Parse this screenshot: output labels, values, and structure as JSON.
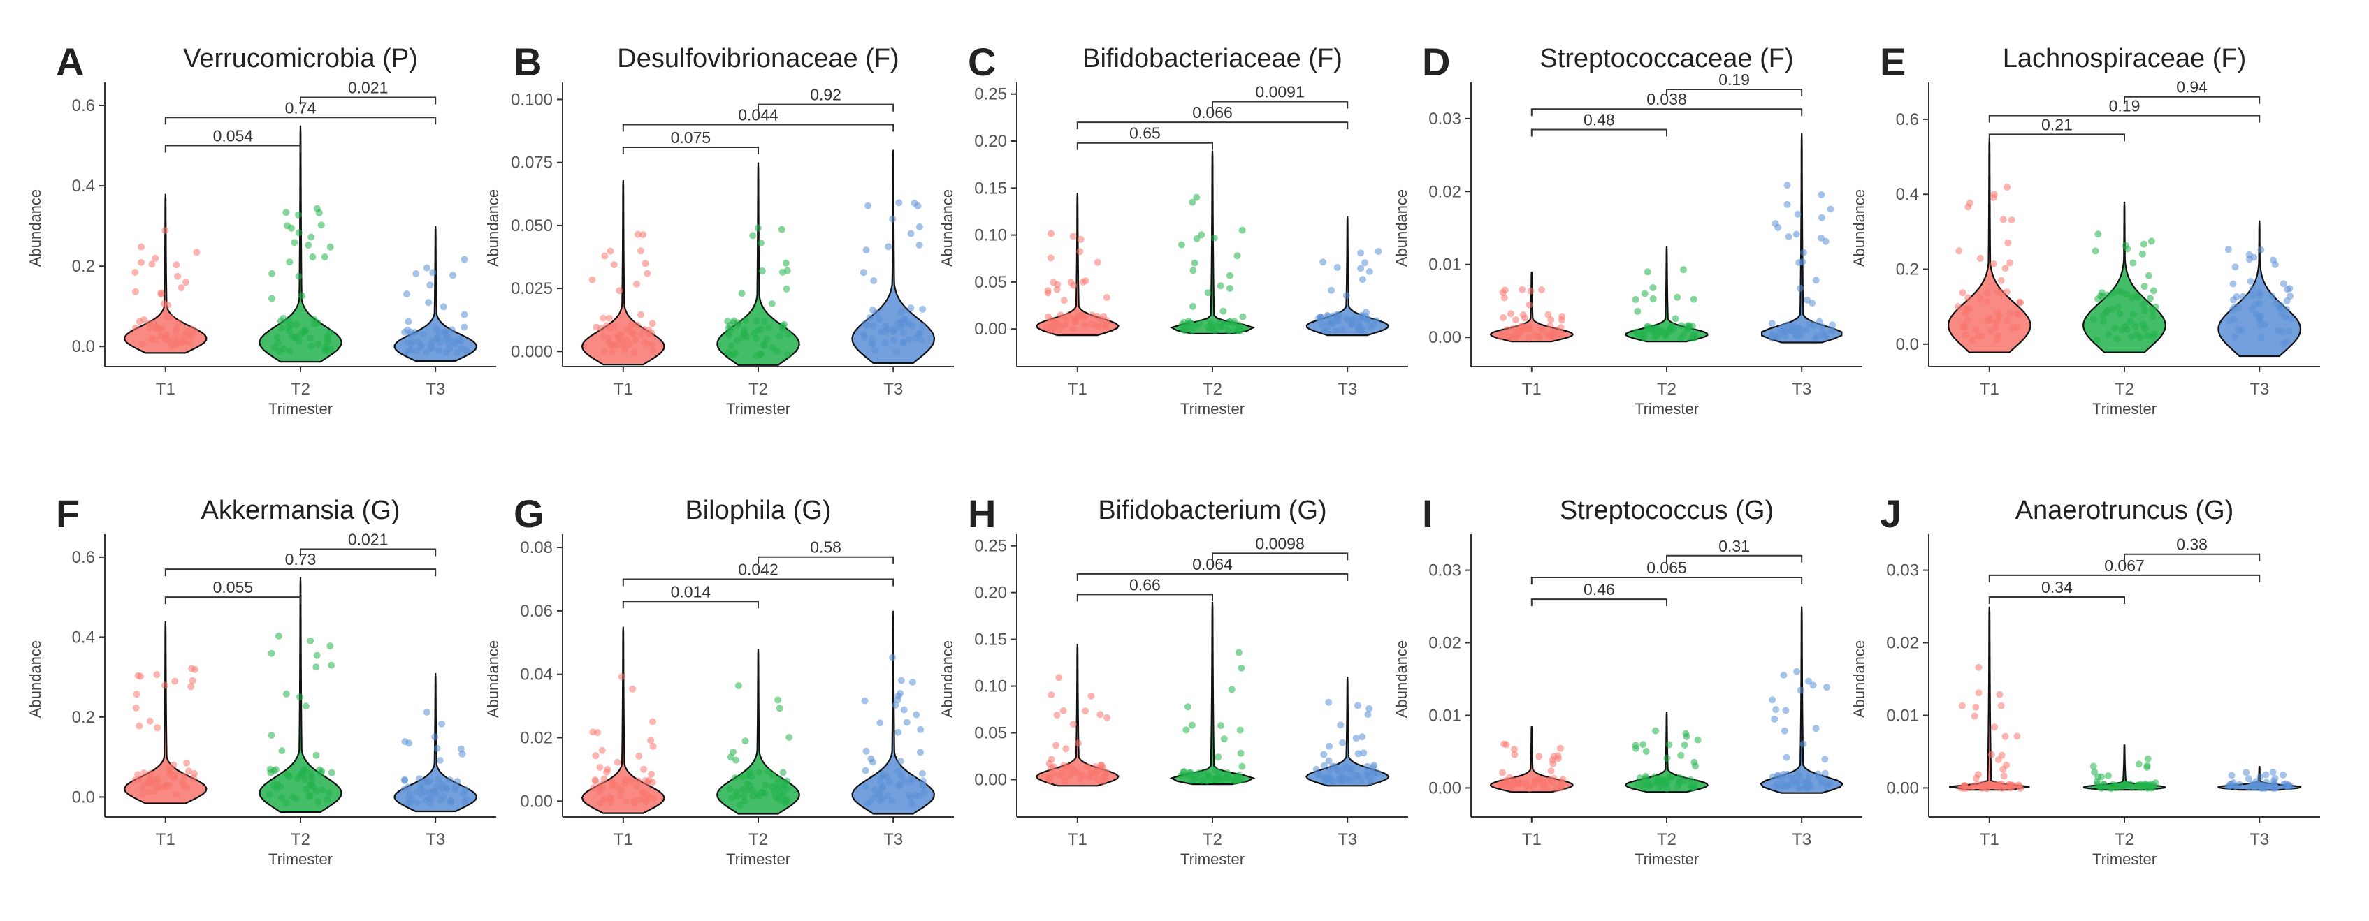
{
  "colors": {
    "T1": "#f8766d",
    "T2": "#22b24c",
    "T3": "#5b8fd6",
    "outline": "#111111"
  },
  "chart_data": [
    {
      "type": "violin",
      "letter": "A",
      "title": "Verrucomicrobia (P)",
      "xlabel": "Trimester",
      "ylabel": "Abundance",
      "categories": [
        "T1",
        "T2",
        "T3"
      ],
      "ylim": [
        -0.05,
        0.64
      ],
      "ticks": [
        0.0,
        0.2,
        0.4,
        0.6
      ],
      "tick_labels": [
        "0.0",
        "0.2",
        "0.4",
        "0.6"
      ],
      "series": [
        {
          "name": "T1",
          "max": 0.38,
          "peak": 0.02,
          "spread": 0.03
        },
        {
          "name": "T2",
          "max": 0.55,
          "peak": 0.01,
          "spread": 0.04
        },
        {
          "name": "T3",
          "max": 0.3,
          "peak": 0.0,
          "spread": 0.03
        }
      ],
      "comparisons": [
        {
          "pair": [
            "T1",
            "T2"
          ],
          "p": "0.054",
          "y": 0.5
        },
        {
          "pair": [
            "T1",
            "T3"
          ],
          "p": "0.74",
          "y": 0.57
        },
        {
          "pair": [
            "T2",
            "T3"
          ],
          "p": "0.021",
          "y": 0.62
        }
      ]
    },
    {
      "type": "violin",
      "letter": "B",
      "title": "Desulfovibrionaceae (F)",
      "xlabel": "Trimester",
      "ylabel": "Abundance",
      "categories": [
        "T1",
        "T2",
        "T3"
      ],
      "ylim": [
        -0.006,
        0.104
      ],
      "ticks": [
        0.0,
        0.025,
        0.05,
        0.075,
        0.1
      ],
      "tick_labels": [
        "0.000",
        "0.025",
        "0.050",
        "0.075",
        "0.100"
      ],
      "series": [
        {
          "name": "T1",
          "max": 0.068,
          "peak": 0.002,
          "spread": 0.006
        },
        {
          "name": "T2",
          "max": 0.075,
          "peak": 0.003,
          "spread": 0.007
        },
        {
          "name": "T3",
          "max": 0.08,
          "peak": 0.005,
          "spread": 0.008
        }
      ],
      "comparisons": [
        {
          "pair": [
            "T1",
            "T2"
          ],
          "p": "0.075",
          "y": 0.081
        },
        {
          "pair": [
            "T1",
            "T3"
          ],
          "p": "0.044",
          "y": 0.09
        },
        {
          "pair": [
            "T2",
            "T3"
          ],
          "p": "0.92",
          "y": 0.098
        }
      ]
    },
    {
      "type": "violin",
      "letter": "C",
      "title": "Bifidobacteriaceae (F)",
      "xlabel": "Trimester",
      "ylabel": "Abundance",
      "categories": [
        "T1",
        "T2",
        "T3"
      ],
      "ylim": [
        -0.04,
        0.255
      ],
      "ticks": [
        0.0,
        0.05,
        0.1,
        0.15,
        0.2,
        0.25
      ],
      "tick_labels": [
        "0.00",
        "0.05",
        "0.10",
        "0.15",
        "0.20",
        "0.25"
      ],
      "series": [
        {
          "name": "T1",
          "max": 0.145,
          "peak": 0.003,
          "spread": 0.008
        },
        {
          "name": "T2",
          "max": 0.19,
          "peak": 0.001,
          "spread": 0.005
        },
        {
          "name": "T3",
          "max": 0.12,
          "peak": 0.003,
          "spread": 0.008
        }
      ],
      "comparisons": [
        {
          "pair": [
            "T1",
            "T2"
          ],
          "p": "0.65",
          "y": 0.198
        },
        {
          "pair": [
            "T1",
            "T3"
          ],
          "p": "0.066",
          "y": 0.22
        },
        {
          "pair": [
            "T2",
            "T3"
          ],
          "p": "0.0091",
          "y": 0.242
        }
      ]
    },
    {
      "type": "violin",
      "letter": "D",
      "title": "Streptococcaceae (F)",
      "xlabel": "Trimester",
      "ylabel": "Abundance",
      "categories": [
        "T1",
        "T2",
        "T3"
      ],
      "ylim": [
        -0.004,
        0.034
      ],
      "ticks": [
        0.0,
        0.01,
        0.02,
        0.03
      ],
      "tick_labels": [
        "0.00",
        "0.01",
        "0.02",
        "0.03"
      ],
      "series": [
        {
          "name": "T1",
          "max": 0.009,
          "peak": 0.0004,
          "spread": 0.0008
        },
        {
          "name": "T2",
          "max": 0.0125,
          "peak": 0.0004,
          "spread": 0.0008
        },
        {
          "name": "T3",
          "max": 0.028,
          "peak": 0.0005,
          "spread": 0.001
        }
      ],
      "comparisons": [
        {
          "pair": [
            "T1",
            "T2"
          ],
          "p": "0.48",
          "y": 0.0285
        },
        {
          "pair": [
            "T1",
            "T3"
          ],
          "p": "0.038",
          "y": 0.0313
        },
        {
          "pair": [
            "T2",
            "T3"
          ],
          "p": "0.19",
          "y": 0.034
        }
      ]
    },
    {
      "type": "violin",
      "letter": "E",
      "title": "Lachnospiraceae (F)",
      "xlabel": "Trimester",
      "ylabel": "Abundance",
      "categories": [
        "T1",
        "T2",
        "T3"
      ],
      "ylim": [
        -0.06,
        0.68
      ],
      "ticks": [
        0.0,
        0.2,
        0.4,
        0.6
      ],
      "tick_labels": [
        "0.0",
        "0.2",
        "0.4",
        "0.6"
      ],
      "series": [
        {
          "name": "T1",
          "max": 0.55,
          "peak": 0.05,
          "spread": 0.06
        },
        {
          "name": "T2",
          "max": 0.38,
          "peak": 0.05,
          "spread": 0.06
        },
        {
          "name": "T3",
          "max": 0.33,
          "peak": 0.04,
          "spread": 0.06
        }
      ],
      "comparisons": [
        {
          "pair": [
            "T1",
            "T2"
          ],
          "p": "0.21",
          "y": 0.56
        },
        {
          "pair": [
            "T1",
            "T3"
          ],
          "p": "0.19",
          "y": 0.61
        },
        {
          "pair": [
            "T2",
            "T3"
          ],
          "p": "0.94",
          "y": 0.66
        }
      ]
    },
    {
      "type": "violin",
      "letter": "F",
      "title": "Akkermansia (G)",
      "xlabel": "Trimester",
      "ylabel": "Abundance",
      "categories": [
        "T1",
        "T2",
        "T3"
      ],
      "ylim": [
        -0.05,
        0.64
      ],
      "ticks": [
        0.0,
        0.2,
        0.4,
        0.6
      ],
      "tick_labels": [
        "0.0",
        "0.2",
        "0.4",
        "0.6"
      ],
      "series": [
        {
          "name": "T1",
          "max": 0.44,
          "peak": 0.02,
          "spread": 0.03
        },
        {
          "name": "T2",
          "max": 0.55,
          "peak": 0.01,
          "spread": 0.04
        },
        {
          "name": "T3",
          "max": 0.31,
          "peak": 0.0,
          "spread": 0.03
        }
      ],
      "comparisons": [
        {
          "pair": [
            "T1",
            "T2"
          ],
          "p": "0.055",
          "y": 0.5
        },
        {
          "pair": [
            "T1",
            "T3"
          ],
          "p": "0.73",
          "y": 0.57
        },
        {
          "pair": [
            "T2",
            "T3"
          ],
          "p": "0.021",
          "y": 0.62
        }
      ]
    },
    {
      "type": "violin",
      "letter": "G",
      "title": "Bilophila (G)",
      "xlabel": "Trimester",
      "ylabel": "Abundance",
      "categories": [
        "T1",
        "T2",
        "T3"
      ],
      "ylim": [
        -0.005,
        0.082
      ],
      "ticks": [
        0.0,
        0.02,
        0.04,
        0.06,
        0.08
      ],
      "tick_labels": [
        "0.00",
        "0.02",
        "0.04",
        "0.06",
        "0.08"
      ],
      "series": [
        {
          "name": "T1",
          "max": 0.055,
          "peak": 0.001,
          "spread": 0.004
        },
        {
          "name": "T2",
          "max": 0.048,
          "peak": 0.002,
          "spread": 0.005
        },
        {
          "name": "T3",
          "max": 0.06,
          "peak": 0.002,
          "spread": 0.005
        }
      ],
      "comparisons": [
        {
          "pair": [
            "T1",
            "T2"
          ],
          "p": "0.014",
          "y": 0.063
        },
        {
          "pair": [
            "T1",
            "T3"
          ],
          "p": "0.042",
          "y": 0.07
        },
        {
          "pair": [
            "T2",
            "T3"
          ],
          "p": "0.58",
          "y": 0.077
        }
      ]
    },
    {
      "type": "violin",
      "letter": "H",
      "title": "Bifidobacterium (G)",
      "xlabel": "Trimester",
      "ylabel": "Abundance",
      "categories": [
        "T1",
        "T2",
        "T3"
      ],
      "ylim": [
        -0.04,
        0.255
      ],
      "ticks": [
        0.0,
        0.05,
        0.1,
        0.15,
        0.2,
        0.25
      ],
      "tick_labels": [
        "0.00",
        "0.05",
        "0.10",
        "0.15",
        "0.20",
        "0.25"
      ],
      "series": [
        {
          "name": "T1",
          "max": 0.145,
          "peak": 0.003,
          "spread": 0.008
        },
        {
          "name": "T2",
          "max": 0.19,
          "peak": 0.001,
          "spread": 0.005
        },
        {
          "name": "T3",
          "max": 0.11,
          "peak": 0.003,
          "spread": 0.008
        }
      ],
      "comparisons": [
        {
          "pair": [
            "T1",
            "T2"
          ],
          "p": "0.66",
          "y": 0.198
        },
        {
          "pair": [
            "T1",
            "T3"
          ],
          "p": "0.064",
          "y": 0.22
        },
        {
          "pair": [
            "T2",
            "T3"
          ],
          "p": "0.0098",
          "y": 0.242
        }
      ]
    },
    {
      "type": "violin",
      "letter": "I",
      "title": "Streptococcus (G)",
      "xlabel": "Trimester",
      "ylabel": "Abundance",
      "categories": [
        "T1",
        "T2",
        "T3"
      ],
      "ylim": [
        -0.004,
        0.034
      ],
      "ticks": [
        0.0,
        0.01,
        0.02,
        0.03
      ],
      "tick_labels": [
        "0.00",
        "0.01",
        "0.02",
        "0.03"
      ],
      "series": [
        {
          "name": "T1",
          "max": 0.0085,
          "peak": 0.0004,
          "spread": 0.0008
        },
        {
          "name": "T2",
          "max": 0.0105,
          "peak": 0.0004,
          "spread": 0.0008
        },
        {
          "name": "T3",
          "max": 0.025,
          "peak": 0.0005,
          "spread": 0.001
        }
      ],
      "comparisons": [
        {
          "pair": [
            "T1",
            "T2"
          ],
          "p": "0.46",
          "y": 0.026
        },
        {
          "pair": [
            "T1",
            "T3"
          ],
          "p": "0.065",
          "y": 0.029
        },
        {
          "pair": [
            "T2",
            "T3"
          ],
          "p": "0.31",
          "y": 0.032
        }
      ]
    },
    {
      "type": "violin",
      "letter": "J",
      "title": "Anaerotruncus (G)",
      "xlabel": "Trimester",
      "ylabel": "Abundance",
      "categories": [
        "T1",
        "T2",
        "T3"
      ],
      "ylim": [
        -0.004,
        0.034
      ],
      "ticks": [
        0.0,
        0.01,
        0.02,
        0.03
      ],
      "tick_labels": [
        "0.00",
        "0.01",
        "0.02",
        "0.03"
      ],
      "series": [
        {
          "name": "T1",
          "max": 0.025,
          "peak": 0.0001,
          "spread": 0.0003
        },
        {
          "name": "T2",
          "max": 0.006,
          "peak": 0.0001,
          "spread": 0.0003
        },
        {
          "name": "T3",
          "max": 0.003,
          "peak": 0.0001,
          "spread": 0.0003
        }
      ],
      "comparisons": [
        {
          "pair": [
            "T1",
            "T2"
          ],
          "p": "0.34",
          "y": 0.0263
        },
        {
          "pair": [
            "T1",
            "T3"
          ],
          "p": "0.067",
          "y": 0.0293
        },
        {
          "pair": [
            "T2",
            "T3"
          ],
          "p": "0.38",
          "y": 0.0322
        }
      ]
    }
  ]
}
